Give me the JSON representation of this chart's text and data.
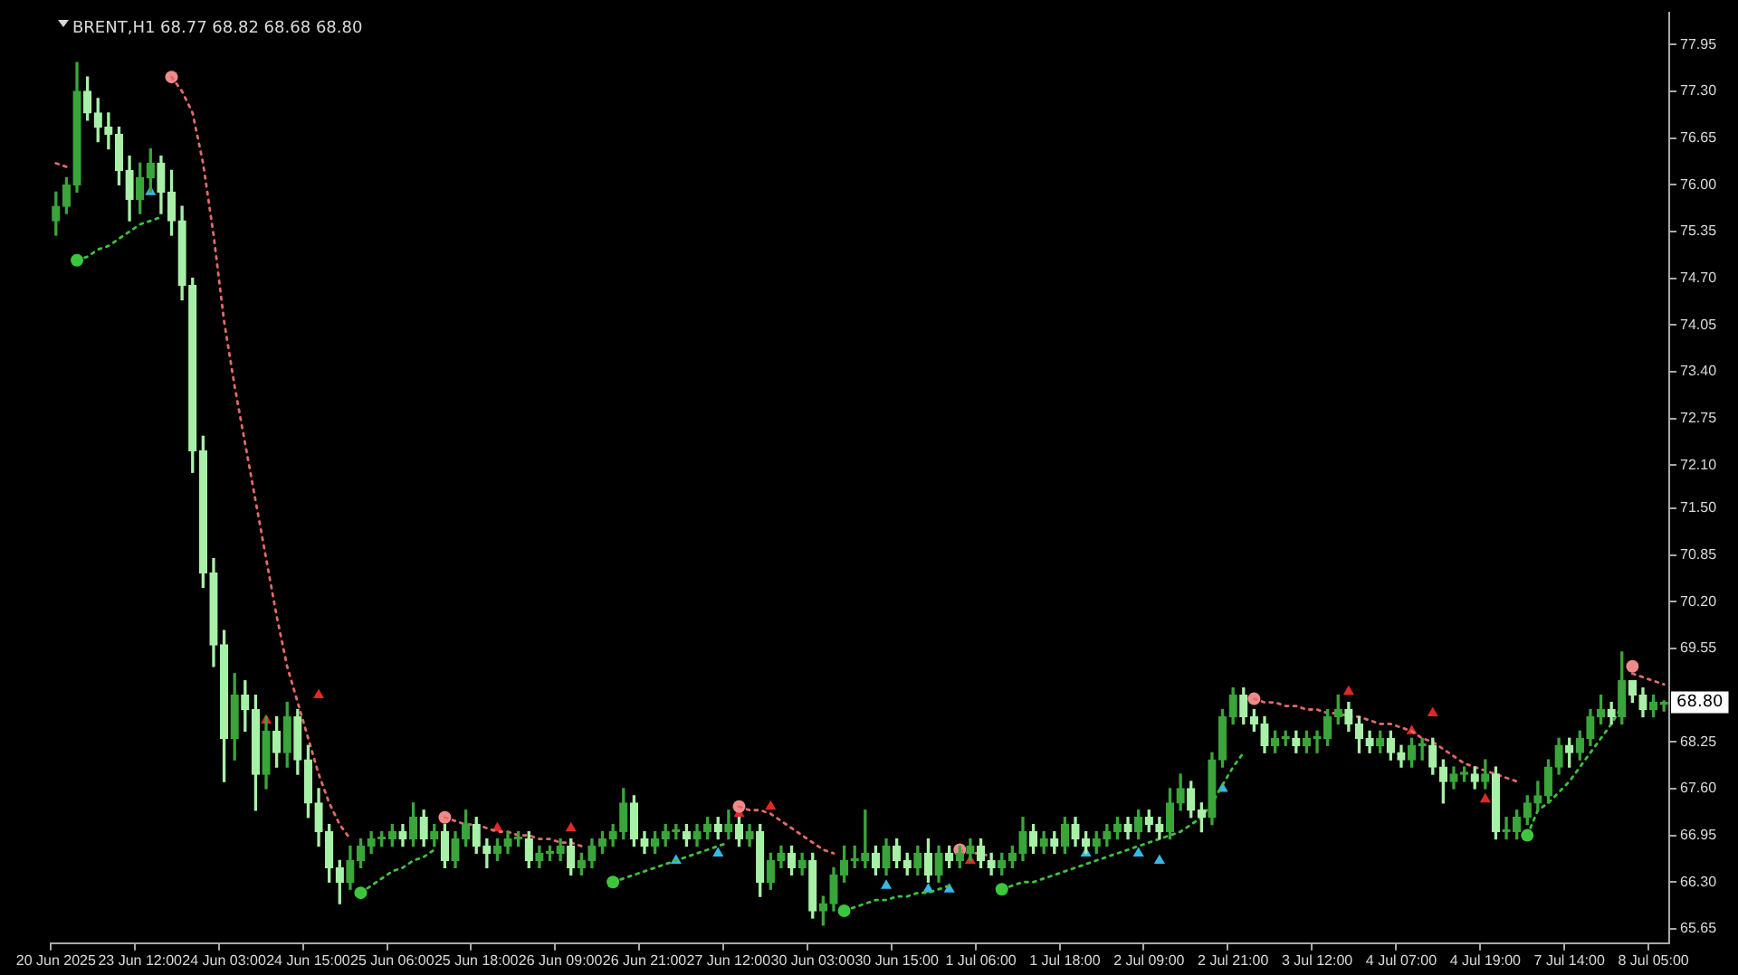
{
  "chart_data": {
    "type": "candlestick",
    "title": "BRENT,H1 68.77 68.82 68.68 68.80",
    "colors": [
      "#3aa53a",
      "#3aa53a",
      "#3aa53a",
      "#a8f0a8",
      "#a8f0a8",
      "#a8f0a8",
      "#a8f0a8",
      "#a8f0a8",
      "#3aa53a",
      "#3aa53a",
      "#a8f0a8",
      "#a8f0a8",
      "#a8f0a8",
      "#a8f0a8",
      "#a8f0a8",
      "#a8f0a8",
      "#a8f0a8",
      "#3aa53a",
      "#a8f0a8",
      "#a8f0a8",
      "#3aa53a",
      "#a8f0a8",
      "#3aa53a",
      "#a8f0a8",
      "#a8f0a8",
      "#a8f0a8",
      "#a8f0a8",
      "#a8f0a8",
      "#3aa53a",
      "#3aa53a",
      "#3aa53a",
      "#3aa53a",
      "#3aa53a",
      "#a8f0a8",
      "#3aa53a",
      "#a8f0a8",
      "#3aa53a",
      "#a8f0a8",
      "#3aa53a",
      "#3aa53a",
      "#a8f0a8",
      "#a8f0a8",
      "#3aa53a",
      "#3aa53a",
      "#3aa53a",
      "#a8f0a8",
      "#3aa53a",
      "#3aa53a",
      "#3aa53a",
      "#a8f0a8",
      "#3aa53a",
      "#3aa53a",
      "#3aa53a",
      "#3aa53a",
      "#3aa53a",
      "#a8f0a8",
      "#a8f0a8",
      "#3aa53a",
      "#3aa53a",
      "#3aa53a",
      "#a8f0a8",
      "#3aa53a",
      "#3aa53a",
      "#a8f0a8",
      "#3aa53a",
      "#a8f0a8",
      "#3aa53a",
      "#a8f0a8",
      "#3aa53a",
      "#3aa53a",
      "#a8f0a8",
      "#3aa53a",
      "#a8f0a8",
      "#3aa53a",
      "#3aa53a",
      "#3aa53a",
      "#3aa53a",
      "#3aa53a",
      "#a8f0a8",
      "#3aa53a",
      "#a8f0a8",
      "#a8f0a8",
      "#3aa53a",
      "#a8f0a8",
      "#3aa53a",
      "#a8f0a8",
      "#3aa53a",
      "#3aa53a",
      "#a8f0a8",
      "#a8f0a8",
      "#3aa53a",
      "#3aa53a",
      "#3aa53a",
      "#a8f0a8",
      "#3aa53a",
      "#a8f0a8",
      "#3aa53a",
      "#a8f0a8",
      "#a8f0a8",
      "#3aa53a",
      "#3aa53a",
      "#3aa53a",
      "#a8f0a8",
      "#3aa53a",
      "#a8f0a8",
      "#a8f0a8",
      "#3aa53a",
      "#3aa53a",
      "#a8f0a8",
      "#a8f0a8",
      "#3aa53a",
      "#3aa53a",
      "#3aa53a",
      "#a8f0a8",
      "#a8f0a8",
      "#a8f0a8",
      "#3aa53a",
      "#3aa53a",
      "#a8f0a8",
      "#3aa53a",
      "#3aa53a",
      "#3aa53a",
      "#3aa53a",
      "#a8f0a8",
      "#a8f0a8",
      "#a8f0a8",
      "#3aa53a",
      "#a8f0a8",
      "#a8f0a8",
      "#3aa53a",
      "#3aa53a",
      "#a8f0a8",
      "#a8f0a8",
      "#3aa53a",
      "#3aa53a",
      "#a8f0a8",
      "#3aa53a",
      "#a8f0a8",
      "#3aa53a",
      "#3aa53a",
      "#3aa53a",
      "#3aa53a",
      "#3aa53a",
      "#3aa53a",
      "#a8f0a8",
      "#3aa53a",
      "#3aa53a",
      "#3aa53a",
      "#a8f0a8",
      "#3aa53a",
      "#a8f0a8",
      "#a8f0a8",
      "#3aa53a",
      "#3aa53a"
    ],
    "categories": [
      "20 Jun 2025",
      null,
      null,
      null,
      null,
      null,
      null,
      null,
      "23 Jun 12:00",
      null,
      null,
      null,
      null,
      null,
      null,
      null,
      "24 Jun 03:00",
      null,
      null,
      null,
      null,
      null,
      null,
      null,
      "24 Jun 15:00",
      null,
      null,
      null,
      null,
      null,
      null,
      null,
      "25 Jun 06:00",
      null,
      null,
      null,
      null,
      null,
      null,
      null,
      "25 Jun 18:00",
      null,
      null,
      null,
      null,
      null,
      null,
      null,
      "26 Jun 09:00",
      null,
      null,
      null,
      null,
      null,
      null,
      null,
      "26 Jun 21:00",
      null,
      null,
      null,
      null,
      null,
      null,
      null,
      "27 Jun 12:00",
      null,
      null,
      null,
      null,
      null,
      null,
      null,
      "30 Jun 03:00",
      null,
      null,
      null,
      null,
      null,
      null,
      null,
      "30 Jun 15:00",
      null,
      null,
      null,
      null,
      null,
      null,
      null,
      "1 Jul 06:00",
      null,
      null,
      null,
      null,
      null,
      null,
      null,
      "1 Jul 18:00",
      null,
      null,
      null,
      null,
      null,
      null,
      null,
      "2 Jul 09:00",
      null,
      null,
      null,
      null,
      null,
      null,
      null,
      "2 Jul 21:00",
      null,
      null,
      null,
      null,
      null,
      null,
      null,
      "3 Jul 12:00",
      null,
      null,
      null,
      null,
      null,
      null,
      null,
      "4 Jul 07:00",
      null,
      null,
      null,
      null,
      null,
      null,
      null,
      "4 Jul 19:00",
      null,
      null,
      null,
      null,
      null,
      null,
      null,
      "7 Jul 14:00",
      null,
      null,
      null,
      null,
      null,
      null,
      null,
      "8 Jul 05:00",
      null
    ],
    "ohlc": [
      [
        75.5,
        75.9,
        75.3,
        75.7
      ],
      [
        75.7,
        76.1,
        75.6,
        76.0
      ],
      [
        76.0,
        77.7,
        75.9,
        77.3
      ],
      [
        77.3,
        77.5,
        76.9,
        77.0
      ],
      [
        77.0,
        77.2,
        76.6,
        76.8
      ],
      [
        76.8,
        77.0,
        76.5,
        76.7
      ],
      [
        76.7,
        76.8,
        76.0,
        76.2
      ],
      [
        76.2,
        76.4,
        75.5,
        75.8
      ],
      [
        75.8,
        76.3,
        75.6,
        76.1
      ],
      [
        76.1,
        76.5,
        75.9,
        76.3
      ],
      [
        76.3,
        76.4,
        75.6,
        75.9
      ],
      [
        75.9,
        76.2,
        75.3,
        75.5
      ],
      [
        75.5,
        75.7,
        74.4,
        74.6
      ],
      [
        74.6,
        74.7,
        72.0,
        72.3
      ],
      [
        72.3,
        72.5,
        70.4,
        70.6
      ],
      [
        70.6,
        70.8,
        69.3,
        69.6
      ],
      [
        69.6,
        69.8,
        67.7,
        68.3
      ],
      [
        68.3,
        69.2,
        68.0,
        68.9
      ],
      [
        68.9,
        69.1,
        68.4,
        68.7
      ],
      [
        68.7,
        68.9,
        67.3,
        67.8
      ],
      [
        67.8,
        68.6,
        67.6,
        68.4
      ],
      [
        68.4,
        68.6,
        67.9,
        68.1
      ],
      [
        68.1,
        68.8,
        67.9,
        68.6
      ],
      [
        68.6,
        68.7,
        67.8,
        68.0
      ],
      [
        68.0,
        68.2,
        67.2,
        67.4
      ],
      [
        67.4,
        67.6,
        66.8,
        67.0
      ],
      [
        67.0,
        67.1,
        66.3,
        66.5
      ],
      [
        66.5,
        66.6,
        66.0,
        66.3
      ],
      [
        66.3,
        66.8,
        66.2,
        66.6
      ],
      [
        66.6,
        66.9,
        66.5,
        66.8
      ],
      [
        66.8,
        67.0,
        66.7,
        66.9
      ],
      [
        66.9,
        67.0,
        66.8,
        66.9
      ],
      [
        66.9,
        67.1,
        66.8,
        67.0
      ],
      [
        67.0,
        67.1,
        66.8,
        66.9
      ],
      [
        66.9,
        67.4,
        66.8,
        67.2
      ],
      [
        67.2,
        67.3,
        66.8,
        66.9
      ],
      [
        66.9,
        67.1,
        66.8,
        67.0
      ],
      [
        67.0,
        67.1,
        66.5,
        66.6
      ],
      [
        66.6,
        67.0,
        66.5,
        66.9
      ],
      [
        66.9,
        67.3,
        66.8,
        67.1
      ],
      [
        67.1,
        67.2,
        66.7,
        66.8
      ],
      [
        66.8,
        66.9,
        66.5,
        66.7
      ],
      [
        66.7,
        66.9,
        66.6,
        66.8
      ],
      [
        66.8,
        67.0,
        66.7,
        66.9
      ],
      [
        66.9,
        67.0,
        66.8,
        66.9
      ],
      [
        66.9,
        67.0,
        66.5,
        66.6
      ],
      [
        66.6,
        66.8,
        66.5,
        66.7
      ],
      [
        66.7,
        66.8,
        66.6,
        66.7
      ],
      [
        66.7,
        66.9,
        66.6,
        66.8
      ],
      [
        66.8,
        66.9,
        66.4,
        66.5
      ],
      [
        66.5,
        66.7,
        66.4,
        66.6
      ],
      [
        66.6,
        66.9,
        66.5,
        66.8
      ],
      [
        66.8,
        67.0,
        66.7,
        66.9
      ],
      [
        66.9,
        67.1,
        66.8,
        67.0
      ],
      [
        67.0,
        67.6,
        66.9,
        67.4
      ],
      [
        67.4,
        67.5,
        66.8,
        66.9
      ],
      [
        66.9,
        67.0,
        66.7,
        66.8
      ],
      [
        66.8,
        67.0,
        66.7,
        66.9
      ],
      [
        66.9,
        67.1,
        66.8,
        67.0
      ],
      [
        67.0,
        67.1,
        66.9,
        67.0
      ],
      [
        67.0,
        67.1,
        66.8,
        66.9
      ],
      [
        66.9,
        67.1,
        66.8,
        67.0
      ],
      [
        67.0,
        67.2,
        66.9,
        67.1
      ],
      [
        67.1,
        67.2,
        66.9,
        67.0
      ],
      [
        67.0,
        67.3,
        66.9,
        67.1
      ],
      [
        67.1,
        67.2,
        66.8,
        66.9
      ],
      [
        66.9,
        67.1,
        66.8,
        67.0
      ],
      [
        67.0,
        67.1,
        66.1,
        66.3
      ],
      [
        66.3,
        66.7,
        66.2,
        66.6
      ],
      [
        66.6,
        66.8,
        66.5,
        66.7
      ],
      [
        66.7,
        66.8,
        66.4,
        66.5
      ],
      [
        66.5,
        66.7,
        66.4,
        66.6
      ],
      [
        66.6,
        66.7,
        65.8,
        65.9
      ],
      [
        65.9,
        66.1,
        65.7,
        66.0
      ],
      [
        66.0,
        66.5,
        65.9,
        66.4
      ],
      [
        66.4,
        66.8,
        66.3,
        66.6
      ],
      [
        66.6,
        66.8,
        66.5,
        66.6
      ],
      [
        66.6,
        67.3,
        66.5,
        66.7
      ],
      [
        66.7,
        66.8,
        66.4,
        66.5
      ],
      [
        66.5,
        66.9,
        66.4,
        66.8
      ],
      [
        66.8,
        66.9,
        66.5,
        66.6
      ],
      [
        66.6,
        66.7,
        66.4,
        66.5
      ],
      [
        66.5,
        66.8,
        66.4,
        66.7
      ],
      [
        66.7,
        66.9,
        66.3,
        66.4
      ],
      [
        66.4,
        66.8,
        66.3,
        66.7
      ],
      [
        66.7,
        66.8,
        66.5,
        66.6
      ],
      [
        66.6,
        66.8,
        66.5,
        66.7
      ],
      [
        66.7,
        66.9,
        66.6,
        66.8
      ],
      [
        66.8,
        66.9,
        66.5,
        66.6
      ],
      [
        66.6,
        66.7,
        66.4,
        66.5
      ],
      [
        66.5,
        66.7,
        66.4,
        66.6
      ],
      [
        66.6,
        66.8,
        66.5,
        66.7
      ],
      [
        66.7,
        67.2,
        66.6,
        67.0
      ],
      [
        67.0,
        67.1,
        66.7,
        66.8
      ],
      [
        66.8,
        67.0,
        66.7,
        66.9
      ],
      [
        66.9,
        67.0,
        66.7,
        66.8
      ],
      [
        66.8,
        67.2,
        66.7,
        67.1
      ],
      [
        67.1,
        67.2,
        66.8,
        66.9
      ],
      [
        66.9,
        67.0,
        66.7,
        66.8
      ],
      [
        66.8,
        67.0,
        66.7,
        66.9
      ],
      [
        66.9,
        67.1,
        66.8,
        67.0
      ],
      [
        67.0,
        67.2,
        66.9,
        67.1
      ],
      [
        67.1,
        67.2,
        66.9,
        67.0
      ],
      [
        67.0,
        67.3,
        66.9,
        67.2
      ],
      [
        67.2,
        67.3,
        67.0,
        67.1
      ],
      [
        67.1,
        67.2,
        66.9,
        67.0
      ],
      [
        67.0,
        67.6,
        66.9,
        67.4
      ],
      [
        67.4,
        67.8,
        67.3,
        67.6
      ],
      [
        67.6,
        67.7,
        67.2,
        67.3
      ],
      [
        67.3,
        67.4,
        67.0,
        67.2
      ],
      [
        67.2,
        68.1,
        67.1,
        68.0
      ],
      [
        68.0,
        68.7,
        67.9,
        68.6
      ],
      [
        68.6,
        69.0,
        68.5,
        68.9
      ],
      [
        68.9,
        69.0,
        68.5,
        68.6
      ],
      [
        68.6,
        68.7,
        68.4,
        68.5
      ],
      [
        68.5,
        68.6,
        68.1,
        68.2
      ],
      [
        68.2,
        68.4,
        68.1,
        68.3
      ],
      [
        68.3,
        68.4,
        68.2,
        68.3
      ],
      [
        68.3,
        68.4,
        68.1,
        68.2
      ],
      [
        68.2,
        68.4,
        68.1,
        68.3
      ],
      [
        68.3,
        68.4,
        68.1,
        68.3
      ],
      [
        68.3,
        68.7,
        68.2,
        68.6
      ],
      [
        68.6,
        68.9,
        68.5,
        68.7
      ],
      [
        68.7,
        68.8,
        68.4,
        68.5
      ],
      [
        68.5,
        68.6,
        68.1,
        68.3
      ],
      [
        68.3,
        68.4,
        68.1,
        68.2
      ],
      [
        68.2,
        68.4,
        68.1,
        68.3
      ],
      [
        68.3,
        68.4,
        68.0,
        68.1
      ],
      [
        68.1,
        68.2,
        67.9,
        68.0
      ],
      [
        68.0,
        68.3,
        67.9,
        68.2
      ],
      [
        68.2,
        68.3,
        68.0,
        68.2
      ],
      [
        68.2,
        68.3,
        67.8,
        67.9
      ],
      [
        67.9,
        68.0,
        67.4,
        67.7
      ],
      [
        67.7,
        67.9,
        67.6,
        67.8
      ],
      [
        67.8,
        67.9,
        67.7,
        67.8
      ],
      [
        67.8,
        67.9,
        67.6,
        67.7
      ],
      [
        67.7,
        68.0,
        67.6,
        67.8
      ],
      [
        67.8,
        67.9,
        66.9,
        67.0
      ],
      [
        67.0,
        67.2,
        66.9,
        67.0
      ],
      [
        67.0,
        67.3,
        66.9,
        67.2
      ],
      [
        67.2,
        67.5,
        67.1,
        67.4
      ],
      [
        67.4,
        67.7,
        67.3,
        67.5
      ],
      [
        67.5,
        68.0,
        67.4,
        67.9
      ],
      [
        67.9,
        68.3,
        67.8,
        68.2
      ],
      [
        68.2,
        68.3,
        67.9,
        68.1
      ],
      [
        68.1,
        68.4,
        68.0,
        68.3
      ],
      [
        68.3,
        68.7,
        68.2,
        68.6
      ],
      [
        68.6,
        68.9,
        68.5,
        68.7
      ],
      [
        68.7,
        68.8,
        68.5,
        68.6
      ],
      [
        68.6,
        69.5,
        68.5,
        69.1
      ],
      [
        69.1,
        69.1,
        68.8,
        68.9
      ],
      [
        68.9,
        69.0,
        68.6,
        68.7
      ],
      [
        68.7,
        68.9,
        68.6,
        68.8
      ],
      [
        68.77,
        68.82,
        68.68,
        68.8
      ]
    ],
    "series": [
      {
        "type": "line",
        "color": "#e06a6a",
        "line_style": "dotted",
        "marker": "none",
        "values": [
          76.3,
          76.25,
          null,
          null,
          null,
          null,
          null,
          null,
          null,
          null,
          null,
          77.5,
          77.3,
          77.0,
          76.3,
          75.3,
          74.1,
          73.2,
          72.4,
          71.6,
          70.8,
          70.0,
          69.3,
          68.8,
          68.3,
          67.8,
          67.4,
          67.1,
          66.9,
          null,
          null,
          null,
          null,
          null,
          null,
          null,
          null,
          67.2,
          67.15,
          67.1,
          67.1,
          67.05,
          67.0,
          67.0,
          66.95,
          66.95,
          66.9,
          66.9,
          66.85,
          66.85,
          66.8,
          null,
          null,
          null,
          null,
          null,
          null,
          null,
          null,
          null,
          null,
          null,
          null,
          null,
          null,
          67.35,
          67.3,
          67.3,
          67.25,
          67.15,
          67.05,
          66.95,
          66.85,
          66.75,
          66.7,
          null,
          null,
          null,
          null,
          null,
          null,
          null,
          null,
          null,
          null,
          null,
          66.75,
          66.7,
          66.7,
          66.65,
          null,
          null,
          null,
          null,
          null,
          null,
          null,
          null,
          null,
          null,
          null,
          null,
          null,
          null,
          null,
          null,
          null,
          null,
          null,
          null,
          null,
          null,
          null,
          null,
          68.85,
          68.8,
          68.8,
          68.75,
          68.75,
          68.7,
          68.7,
          68.65,
          68.65,
          68.6,
          68.6,
          68.55,
          68.5,
          68.5,
          68.45,
          68.4,
          68.3,
          68.25,
          68.15,
          68.05,
          67.95,
          67.9,
          67.85,
          67.8,
          67.75,
          67.7,
          null,
          null,
          null,
          null,
          null,
          null,
          null,
          null,
          null,
          null,
          69.2,
          69.15,
          69.1,
          69.05
        ]
      },
      {
        "type": "line",
        "color": "#40c040",
        "line_style": "dotted",
        "marker": "none",
        "values": [
          null,
          null,
          74.95,
          75.0,
          75.1,
          75.15,
          75.25,
          75.35,
          75.45,
          75.5,
          75.55,
          null,
          null,
          null,
          null,
          null,
          null,
          null,
          null,
          null,
          null,
          null,
          null,
          null,
          null,
          null,
          null,
          null,
          null,
          66.15,
          66.25,
          66.35,
          66.45,
          66.5,
          66.6,
          66.65,
          66.75,
          null,
          null,
          null,
          null,
          null,
          null,
          null,
          null,
          null,
          null,
          null,
          null,
          null,
          null,
          null,
          null,
          66.3,
          66.35,
          66.4,
          66.45,
          66.5,
          66.55,
          66.6,
          66.65,
          66.7,
          66.75,
          66.8,
          66.85,
          null,
          null,
          null,
          null,
          null,
          null,
          null,
          null,
          null,
          null,
          65.9,
          65.95,
          66.0,
          66.05,
          66.05,
          66.1,
          66.1,
          66.15,
          66.15,
          66.2,
          66.25,
          null,
          null,
          null,
          null,
          66.2,
          66.25,
          66.3,
          66.3,
          66.35,
          66.4,
          66.45,
          66.5,
          66.55,
          66.6,
          66.65,
          66.7,
          66.75,
          66.8,
          66.85,
          66.9,
          66.95,
          67.0,
          67.1,
          67.2,
          67.4,
          67.65,
          67.9,
          68.1,
          null,
          null,
          null,
          null,
          null,
          null,
          null,
          null,
          null,
          null,
          null,
          null,
          null,
          null,
          null,
          null,
          null,
          null,
          null,
          null,
          null,
          null,
          null,
          null,
          null,
          null,
          66.95,
          67.3,
          67.4,
          67.55,
          67.7,
          67.9,
          68.1,
          68.3,
          68.5,
          68.75,
          null,
          null,
          null,
          null
        ]
      },
      {
        "type": "scatter",
        "color": "#f08a8a",
        "marker": "circle",
        "values": [
          null,
          null,
          null,
          null,
          null,
          null,
          null,
          null,
          null,
          null,
          null,
          77.5,
          null,
          null,
          null,
          null,
          null,
          null,
          null,
          null,
          null,
          null,
          null,
          null,
          null,
          null,
          null,
          null,
          null,
          null,
          null,
          null,
          null,
          null,
          null,
          null,
          null,
          67.2,
          null,
          null,
          null,
          null,
          null,
          null,
          null,
          null,
          null,
          null,
          null,
          null,
          null,
          null,
          null,
          null,
          null,
          null,
          null,
          null,
          null,
          null,
          null,
          null,
          null,
          null,
          null,
          67.35,
          null,
          null,
          null,
          null,
          null,
          null,
          null,
          null,
          null,
          null,
          null,
          null,
          null,
          null,
          null,
          null,
          null,
          null,
          null,
          null,
          66.75,
          null,
          null,
          null,
          null,
          null,
          null,
          null,
          null,
          null,
          null,
          null,
          null,
          null,
          null,
          null,
          null,
          null,
          null,
          null,
          null,
          null,
          null,
          null,
          null,
          null,
          null,
          null,
          68.85,
          null,
          null,
          null,
          null,
          null,
          null,
          null,
          null,
          null,
          null,
          null,
          null,
          null,
          null,
          null,
          null,
          null,
          null,
          null,
          null,
          null,
          null,
          null,
          null,
          null,
          null,
          null,
          null,
          null,
          null,
          null,
          null,
          null,
          null,
          null,
          69.3,
          null,
          null,
          null
        ]
      },
      {
        "type": "scatter",
        "color": "#3cc83c",
        "marker": "circle",
        "values": [
          null,
          null,
          74.95,
          null,
          null,
          null,
          null,
          null,
          null,
          null,
          null,
          null,
          null,
          null,
          null,
          null,
          null,
          null,
          null,
          null,
          null,
          null,
          null,
          null,
          null,
          null,
          null,
          null,
          null,
          66.15,
          null,
          null,
          null,
          null,
          null,
          null,
          null,
          null,
          null,
          null,
          null,
          null,
          null,
          null,
          null,
          null,
          null,
          null,
          null,
          null,
          null,
          null,
          null,
          66.3,
          null,
          null,
          null,
          null,
          null,
          null,
          null,
          null,
          null,
          null,
          null,
          null,
          null,
          null,
          null,
          null,
          null,
          null,
          null,
          null,
          null,
          65.9,
          null,
          null,
          null,
          null,
          null,
          null,
          null,
          null,
          null,
          null,
          null,
          null,
          null,
          null,
          66.2,
          null,
          null,
          null,
          null,
          null,
          null,
          null,
          null,
          null,
          null,
          null,
          null,
          null,
          null,
          null,
          null,
          null,
          null,
          null,
          null,
          null,
          null,
          null,
          null,
          null,
          null,
          null,
          null,
          null,
          null,
          null,
          null,
          null,
          null,
          null,
          null,
          null,
          null,
          null,
          null,
          null,
          null,
          null,
          null,
          null,
          null,
          null,
          null,
          null,
          66.95,
          null,
          null,
          null,
          null,
          null,
          null,
          null,
          null,
          null,
          null,
          null,
          null,
          null
        ]
      },
      {
        "type": "scatter",
        "color": "#38b8e8",
        "marker": "triangle",
        "values": [
          null,
          null,
          null,
          null,
          null,
          null,
          null,
          null,
          null,
          75.9,
          null,
          null,
          null,
          null,
          null,
          null,
          null,
          null,
          null,
          null,
          null,
          null,
          null,
          null,
          null,
          null,
          null,
          null,
          null,
          null,
          null,
          null,
          null,
          null,
          null,
          null,
          null,
          null,
          null,
          null,
          null,
          null,
          null,
          null,
          null,
          null,
          null,
          null,
          null,
          null,
          null,
          null,
          null,
          null,
          null,
          null,
          null,
          null,
          null,
          66.6,
          null,
          null,
          null,
          66.7,
          null,
          null,
          null,
          null,
          null,
          null,
          null,
          null,
          null,
          null,
          null,
          null,
          null,
          null,
          null,
          66.25,
          null,
          null,
          null,
          66.2,
          null,
          66.2,
          null,
          null,
          null,
          null,
          null,
          null,
          null,
          null,
          null,
          null,
          null,
          null,
          66.7,
          null,
          null,
          null,
          null,
          66.7,
          null,
          66.6,
          null,
          null,
          null,
          null,
          null,
          67.6,
          null,
          null,
          null,
          null,
          null,
          null,
          null,
          null,
          null,
          null,
          null,
          null,
          null,
          null,
          null,
          null,
          null,
          null,
          null,
          null,
          null,
          null,
          null,
          null,
          null,
          null,
          null,
          null,
          null,
          null,
          null,
          null,
          null,
          null,
          null,
          null,
          null,
          null,
          null,
          null,
          null,
          null
        ]
      },
      {
        "type": "scatter",
        "color": "#e02828",
        "marker": "triangle",
        "values": [
          null,
          null,
          null,
          null,
          null,
          null,
          null,
          null,
          null,
          null,
          null,
          null,
          null,
          null,
          null,
          null,
          null,
          null,
          null,
          null,
          68.55,
          null,
          null,
          null,
          null,
          68.9,
          null,
          null,
          null,
          null,
          null,
          null,
          null,
          null,
          null,
          null,
          null,
          null,
          null,
          null,
          null,
          null,
          67.05,
          null,
          null,
          null,
          null,
          null,
          null,
          67.05,
          null,
          null,
          null,
          null,
          null,
          null,
          null,
          null,
          null,
          null,
          null,
          null,
          null,
          null,
          null,
          67.25,
          null,
          null,
          67.35,
          null,
          null,
          null,
          null,
          null,
          null,
          null,
          null,
          null,
          null,
          null,
          null,
          null,
          null,
          null,
          null,
          null,
          null,
          66.6,
          null,
          null,
          null,
          null,
          null,
          null,
          null,
          null,
          null,
          null,
          null,
          null,
          null,
          null,
          null,
          null,
          null,
          null,
          null,
          null,
          null,
          null,
          null,
          null,
          null,
          null,
          null,
          null,
          null,
          null,
          null,
          null,
          null,
          null,
          null,
          68.95,
          null,
          null,
          null,
          null,
          null,
          68.4,
          null,
          68.65,
          null,
          null,
          null,
          null,
          67.45,
          null,
          null,
          null,
          null,
          null,
          null,
          null,
          null,
          null,
          null,
          null,
          null,
          null,
          null,
          null,
          null,
          null
        ]
      }
    ],
    "ylim": [
      65.45,
      78.4
    ],
    "yticks": [
      {
        "value": 77.95,
        "label": "77.95"
      },
      {
        "value": 77.3,
        "label": "77.30"
      },
      {
        "value": 76.65,
        "label": "76.65"
      },
      {
        "value": 76.0,
        "label": "76.00"
      },
      {
        "value": 75.35,
        "label": "75.35"
      },
      {
        "value": 74.7,
        "label": "74.70"
      },
      {
        "value": 74.05,
        "label": "74.05"
      },
      {
        "value": 73.4,
        "label": "73.40"
      },
      {
        "value": 72.75,
        "label": "72.75"
      },
      {
        "value": 72.1,
        "label": "72.10"
      },
      {
        "value": 71.5,
        "label": "71.50"
      },
      {
        "value": 70.85,
        "label": "70.85"
      },
      {
        "value": 70.2,
        "label": "70.20"
      },
      {
        "value": 69.55,
        "label": "69.55"
      },
      {
        "value": 68.25,
        "label": "68.25"
      },
      {
        "value": 67.6,
        "label": "67.60"
      },
      {
        "value": 66.95,
        "label": "66.95"
      },
      {
        "value": 66.3,
        "label": "66.30"
      },
      {
        "value": 65.65,
        "label": "65.65"
      }
    ],
    "annotations": [
      {
        "text": "68.80",
        "y": 68.8
      }
    ]
  }
}
